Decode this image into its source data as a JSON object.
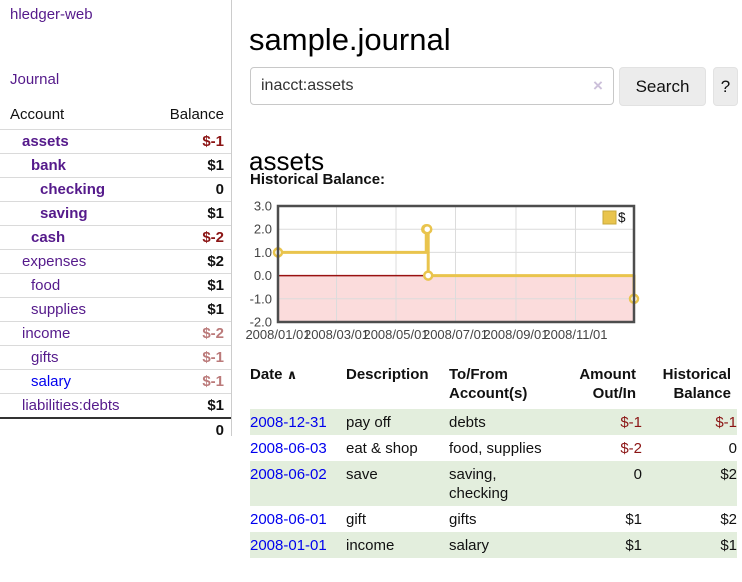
{
  "brand": {
    "label": "hledger-web"
  },
  "nav": {
    "journal_label": "Journal"
  },
  "sidebar": {
    "col_account": "Account",
    "col_balance": "Balance",
    "accounts": [
      {
        "name": "assets",
        "balance": "$-1"
      },
      {
        "name": "bank",
        "balance": "$1"
      },
      {
        "name": "checking",
        "balance": "0"
      },
      {
        "name": "saving",
        "balance": "$1"
      },
      {
        "name": "cash",
        "balance": "$-2"
      },
      {
        "name": "expenses",
        "balance": "$2"
      },
      {
        "name": "food",
        "balance": "$1"
      },
      {
        "name": "supplies",
        "balance": "$1"
      },
      {
        "name": "income",
        "balance": "$-2"
      },
      {
        "name": "gifts",
        "balance": "$-1"
      },
      {
        "name": "salary",
        "balance": "$-1"
      },
      {
        "name": "liabilities:debts",
        "balance": "$1"
      }
    ],
    "total": "0"
  },
  "main": {
    "title": "sample.journal",
    "search": {
      "value": "inacct:assets",
      "clear_icon": "×",
      "search_label": "Search",
      "help_label": "?"
    },
    "account_title": "assets",
    "chart_heading": "Historical Balance:"
  },
  "chart_data": {
    "type": "line",
    "style": "step-after",
    "title": "Historical Balance",
    "series": [
      {
        "name": "$",
        "points": [
          [
            "2008-01-01",
            1
          ],
          [
            "2008-06-01",
            2
          ],
          [
            "2008-06-02",
            2
          ],
          [
            "2008-06-03",
            0
          ],
          [
            "2008-12-31",
            -1
          ]
        ]
      }
    ],
    "x_ticks": [
      "2008/01/01",
      "2008/03/01",
      "2008/05/01",
      "2008/07/01",
      "2008/09/01",
      "2008/11/01"
    ],
    "y_ticks": [
      "3.0",
      "2.0",
      "1.0",
      "0.0",
      "-1.0",
      "-2.0"
    ],
    "ylim": [
      -2,
      3
    ],
    "x_range_days": [
      0,
      365
    ],
    "legend": {
      "label": "$",
      "position": "top-right"
    },
    "grid": true,
    "colors": {
      "line": "#e9c44d",
      "marker_fill": "#ffffff",
      "negative_region": "#fbdcdc",
      "zero_line": "#991111",
      "gridline": "#dcdcdc",
      "border": "#4d4d4d",
      "tick_label": "#444444"
    }
  },
  "register": {
    "col_date": "Date",
    "sort_icon": "∧",
    "col_description": "Description",
    "col_accounts": "To/From Account(s)",
    "col_amount": "Amount Out/In",
    "col_balance": "Historical Balance",
    "rows": [
      {
        "date": "2008-12-31",
        "description": "pay off",
        "accounts": "debts",
        "amount": "$-1",
        "balance": "$-1"
      },
      {
        "date": "2008-06-03",
        "description": "eat & shop",
        "accounts": "food, supplies",
        "amount": "$-2",
        "balance": "0"
      },
      {
        "date": "2008-06-02",
        "description": "save",
        "accounts": "saving, checking",
        "amount": "0",
        "balance": "$2"
      },
      {
        "date": "2008-06-01",
        "description": "gift",
        "accounts": "gifts",
        "amount": "$1",
        "balance": "$2"
      },
      {
        "date": "2008-01-01",
        "description": "income",
        "accounts": "salary",
        "amount": "$1",
        "balance": "$1"
      }
    ]
  },
  "colors": {
    "link_purple": "#551a8b",
    "link_blue": "#0000ee",
    "negative_strong": "#8b1414",
    "negative_faded": "#bb7a7a",
    "row_green": "#e3eedd"
  }
}
